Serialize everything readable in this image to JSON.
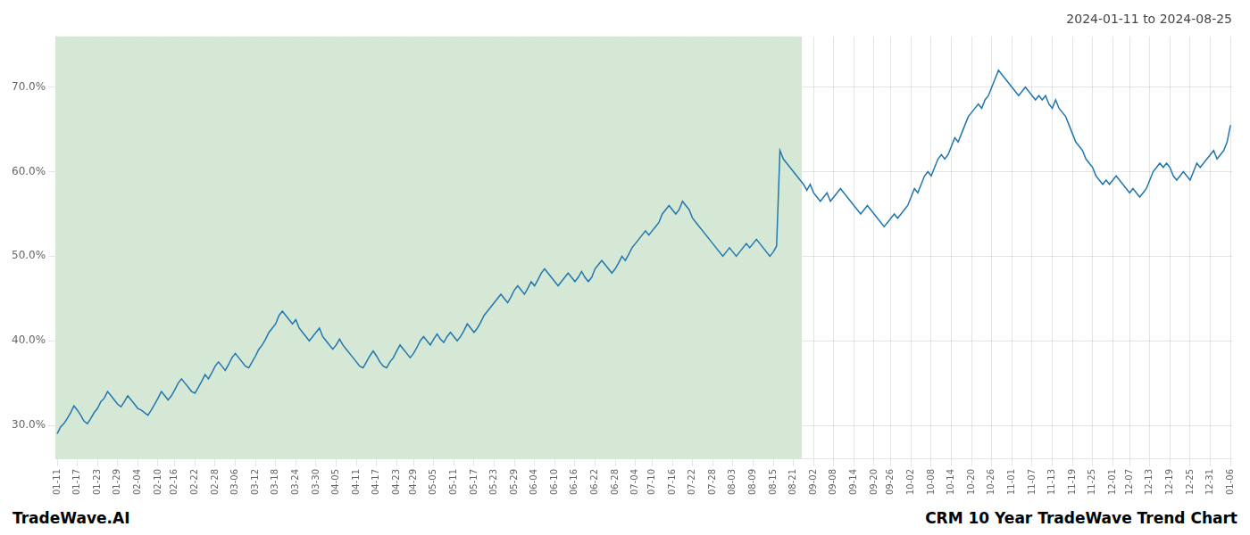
{
  "chart_data": {
    "type": "line",
    "title": "CRM 10 Year TradeWave Trend Chart",
    "subtitle": "2024-01-11 to 2024-08-25",
    "annotations": [
      "TradeWave.AI"
    ],
    "color": "#2176ae",
    "grid": true,
    "shaded_region": {
      "start": 0,
      "end": 221,
      "color": "#d5e8d5"
    },
    "ylim": [
      26.0,
      76.0
    ],
    "yticks": [
      {
        "value": 30.0,
        "label": "30.0%"
      },
      {
        "value": 40.0,
        "label": "40.0%"
      },
      {
        "value": 50.0,
        "label": "50.0%"
      },
      {
        "value": 60.0,
        "label": "60.0%"
      },
      {
        "value": 70.0,
        "label": "70.0%"
      }
    ],
    "categories": [
      "01-11",
      null,
      null,
      null,
      null,
      null,
      "01-17",
      null,
      null,
      null,
      null,
      null,
      "01-23",
      null,
      null,
      null,
      null,
      null,
      "01-29",
      null,
      null,
      null,
      null,
      null,
      "02-04",
      null,
      null,
      null,
      null,
      null,
      "02-10",
      null,
      null,
      null,
      null,
      "02-16",
      null,
      null,
      null,
      null,
      null,
      "02-22",
      null,
      null,
      null,
      null,
      null,
      "02-28",
      null,
      null,
      null,
      null,
      null,
      "03-06",
      null,
      null,
      null,
      null,
      null,
      "03-12",
      null,
      null,
      null,
      null,
      null,
      "03-18",
      null,
      null,
      null,
      null,
      null,
      "03-24",
      null,
      null,
      null,
      null,
      null,
      "03-30",
      null,
      null,
      null,
      null,
      null,
      "04-05",
      null,
      null,
      null,
      null,
      null,
      "04-11",
      null,
      null,
      null,
      null,
      null,
      "04-17",
      null,
      null,
      null,
      null,
      null,
      "04-23",
      null,
      null,
      null,
      null,
      "04-29",
      null,
      null,
      null,
      null,
      null,
      "05-05",
      null,
      null,
      null,
      null,
      null,
      "05-11",
      null,
      null,
      null,
      null,
      null,
      "05-17",
      null,
      null,
      null,
      null,
      null,
      "05-23",
      null,
      null,
      null,
      null,
      null,
      "05-29",
      null,
      null,
      null,
      null,
      null,
      "06-04",
      null,
      null,
      null,
      null,
      null,
      "06-10",
      null,
      null,
      null,
      null,
      null,
      "06-16",
      null,
      null,
      null,
      null,
      null,
      "06-22",
      null,
      null,
      null,
      null,
      null,
      "06-28",
      null,
      null,
      null,
      null,
      null,
      "07-04",
      null,
      null,
      null,
      null,
      "07-10",
      null,
      null,
      null,
      null,
      null,
      "07-16",
      null,
      null,
      null,
      null,
      null,
      "07-22",
      null,
      null,
      null,
      null,
      null,
      "07-28",
      null,
      null,
      null,
      null,
      null,
      "08-03",
      null,
      null,
      null,
      null,
      null,
      "08-09",
      null,
      null,
      null,
      null,
      null,
      "08-15",
      null,
      null,
      null,
      null,
      null,
      "08-21",
      null,
      null,
      null,
      null,
      null,
      "09-02",
      null,
      null,
      null,
      null,
      null,
      "09-08",
      null,
      null,
      null,
      null,
      null,
      "09-14",
      null,
      null,
      null,
      null,
      null,
      "09-20",
      null,
      null,
      null,
      null,
      "09-26",
      null,
      null,
      null,
      null,
      null,
      "10-02",
      null,
      null,
      null,
      null,
      null,
      "10-08",
      null,
      null,
      null,
      null,
      null,
      "10-14",
      null,
      null,
      null,
      null,
      null,
      "10-20",
      null,
      null,
      null,
      null,
      null,
      "10-26",
      null,
      null,
      null,
      null,
      null,
      "11-01",
      null,
      null,
      null,
      null,
      null,
      "11-07",
      null,
      null,
      null,
      null,
      null,
      "11-13",
      null,
      null,
      null,
      null,
      null,
      "11-19",
      null,
      null,
      null,
      null,
      null,
      "11-25",
      null,
      null,
      null,
      null,
      null,
      "12-01",
      null,
      null,
      null,
      null,
      "12-07",
      null,
      null,
      null,
      null,
      null,
      "12-13",
      null,
      null,
      null,
      null,
      null,
      "12-19",
      null,
      null,
      null,
      null,
      null,
      "12-25",
      null,
      null,
      null,
      null,
      null,
      "12-31",
      null,
      null,
      null,
      null,
      null,
      "01-06"
    ],
    "values": [
      29.0,
      29.8,
      30.2,
      30.8,
      31.5,
      32.3,
      31.8,
      31.2,
      30.5,
      30.2,
      30.8,
      31.5,
      32.0,
      32.8,
      33.2,
      34.0,
      33.5,
      33.0,
      32.5,
      32.2,
      32.8,
      33.5,
      33.0,
      32.5,
      32.0,
      31.8,
      31.5,
      31.2,
      31.8,
      32.5,
      33.2,
      34.0,
      33.5,
      33.0,
      33.5,
      34.2,
      35.0,
      35.5,
      35.0,
      34.5,
      34.0,
      33.8,
      34.5,
      35.2,
      36.0,
      35.5,
      36.2,
      37.0,
      37.5,
      37.0,
      36.5,
      37.2,
      38.0,
      38.5,
      38.0,
      37.5,
      37.0,
      36.8,
      37.5,
      38.2,
      39.0,
      39.5,
      40.2,
      41.0,
      41.5,
      42.0,
      43.0,
      43.5,
      43.0,
      42.5,
      42.0,
      42.5,
      41.5,
      41.0,
      40.5,
      40.0,
      40.5,
      41.0,
      41.5,
      40.5,
      40.0,
      39.5,
      39.0,
      39.5,
      40.2,
      39.5,
      39.0,
      38.5,
      38.0,
      37.5,
      37.0,
      36.8,
      37.5,
      38.2,
      38.8,
      38.2,
      37.5,
      37.0,
      36.8,
      37.5,
      38.0,
      38.8,
      39.5,
      39.0,
      38.5,
      38.0,
      38.5,
      39.2,
      40.0,
      40.5,
      40.0,
      39.5,
      40.2,
      40.8,
      40.2,
      39.8,
      40.5,
      41.0,
      40.5,
      40.0,
      40.5,
      41.2,
      42.0,
      41.5,
      41.0,
      41.5,
      42.2,
      43.0,
      43.5,
      44.0,
      44.5,
      45.0,
      45.5,
      45.0,
      44.5,
      45.2,
      46.0,
      46.5,
      46.0,
      45.5,
      46.2,
      47.0,
      46.5,
      47.2,
      48.0,
      48.5,
      48.0,
      47.5,
      47.0,
      46.5,
      47.0,
      47.5,
      48.0,
      47.5,
      47.0,
      47.5,
      48.2,
      47.5,
      47.0,
      47.5,
      48.5,
      49.0,
      49.5,
      49.0,
      48.5,
      48.0,
      48.5,
      49.2,
      50.0,
      49.5,
      50.2,
      51.0,
      51.5,
      52.0,
      52.5,
      53.0,
      52.5,
      53.0,
      53.5,
      54.0,
      55.0,
      55.5,
      56.0,
      55.5,
      55.0,
      55.5,
      56.5,
      56.0,
      55.5,
      54.5,
      54.0,
      53.5,
      53.0,
      52.5,
      52.0,
      51.5,
      51.0,
      50.5,
      50.0,
      50.5,
      51.0,
      50.5,
      50.0,
      50.5,
      51.0,
      51.5,
      51.0,
      51.5,
      52.0,
      51.5,
      51.0,
      50.5,
      50.0,
      50.5,
      51.2,
      62.5,
      61.5,
      61.0,
      60.5,
      60.0,
      59.5,
      59.0,
      58.5,
      57.8,
      58.5,
      57.5,
      57.0,
      56.5,
      57.0,
      57.5,
      56.5,
      57.0,
      57.5,
      58.0,
      57.5,
      57.0,
      56.5,
      56.0,
      55.5,
      55.0,
      55.5,
      56.0,
      55.5,
      55.0,
      54.5,
      54.0,
      53.5,
      54.0,
      54.5,
      55.0,
      54.5,
      55.0,
      55.5,
      56.0,
      57.0,
      58.0,
      57.5,
      58.5,
      59.5,
      60.0,
      59.5,
      60.5,
      61.5,
      62.0,
      61.5,
      62.0,
      63.0,
      64.0,
      63.5,
      64.5,
      65.5,
      66.5,
      67.0,
      67.5,
      68.0,
      67.5,
      68.5,
      69.0,
      70.0,
      71.0,
      72.0,
      71.5,
      71.0,
      70.5,
      70.0,
      69.5,
      69.0,
      69.5,
      70.0,
      69.5,
      69.0,
      68.5,
      69.0,
      68.5,
      69.0,
      68.0,
      67.5,
      68.5,
      67.5,
      67.0,
      66.5,
      65.5,
      64.5,
      63.5,
      63.0,
      62.5,
      61.5,
      61.0,
      60.5,
      59.5,
      59.0,
      58.5,
      59.0,
      58.5,
      59.0,
      59.5,
      59.0,
      58.5,
      58.0,
      57.5,
      58.0,
      57.5,
      57.0,
      57.5,
      58.0,
      59.0,
      60.0,
      60.5,
      61.0,
      60.5,
      61.0,
      60.5,
      59.5,
      59.0,
      59.5,
      60.0,
      59.5,
      59.0,
      60.0,
      61.0,
      60.5,
      61.0,
      61.5,
      62.0,
      62.5,
      61.5,
      62.0,
      62.5,
      63.5,
      65.5
    ]
  }
}
